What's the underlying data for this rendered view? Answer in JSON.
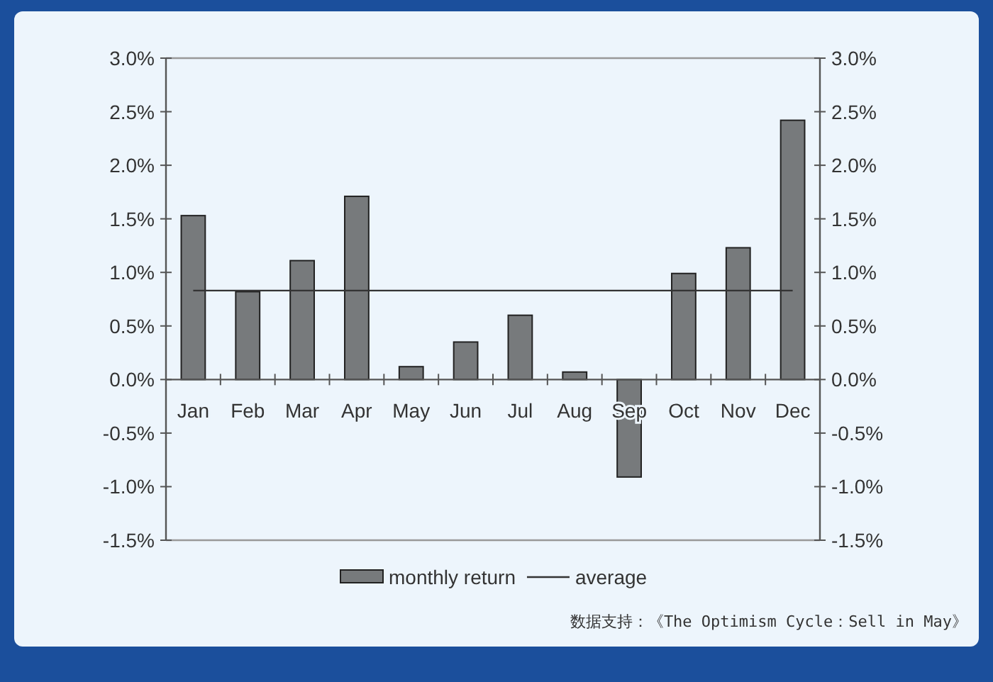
{
  "chart_data": {
    "type": "bar",
    "categories": [
      "Jan",
      "Feb",
      "Mar",
      "Apr",
      "May",
      "Jun",
      "Jul",
      "Aug",
      "Sep",
      "Oct",
      "Nov",
      "Dec"
    ],
    "series": [
      {
        "name": "monthly return",
        "color": "#777a7c",
        "values": [
          1.53,
          0.82,
          1.11,
          1.71,
          0.12,
          0.35,
          0.6,
          0.07,
          -0.91,
          0.99,
          1.23,
          2.42
        ]
      },
      {
        "name": "average",
        "type": "line",
        "color": "#333333",
        "values": [
          0.83,
          0.83,
          0.83,
          0.83,
          0.83,
          0.83,
          0.83,
          0.83,
          0.83,
          0.83,
          0.83,
          0.83
        ]
      }
    ],
    "ylim": [
      -1.5,
      3
    ],
    "yticks": [
      {
        "value": -1.5,
        "label": "-1.5%"
      },
      {
        "value": -1,
        "label": "-1.0%"
      },
      {
        "value": -0.5,
        "label": "-0.5%"
      },
      {
        "value": 0,
        "label": "0.0%"
      },
      {
        "value": 0.5,
        "label": "0.5%"
      },
      {
        "value": 1,
        "label": "1.0%"
      },
      {
        "value": 1.5,
        "label": "1.5%"
      },
      {
        "value": 2,
        "label": "2.0%"
      },
      {
        "value": 2.5,
        "label": "2.5%"
      },
      {
        "value": 3,
        "label": "3.0%"
      }
    ],
    "y2lim": [
      -1.5,
      3
    ],
    "y2ticks": [
      {
        "value": -1.5,
        "label": "-1.5%"
      },
      {
        "value": -1,
        "label": "-1.0%"
      },
      {
        "value": -0.5,
        "label": "-0.5%"
      },
      {
        "value": 0,
        "label": "0.0%"
      },
      {
        "value": 0.5,
        "label": "0.5%"
      },
      {
        "value": 1,
        "label": "1.0%"
      },
      {
        "value": 1.5,
        "label": "1.5%"
      },
      {
        "value": 2,
        "label": "2.0%"
      },
      {
        "value": 2.5,
        "label": "2.5%"
      },
      {
        "value": 3,
        "label": "3.0%"
      }
    ],
    "legend": "bottom",
    "grid": false,
    "annotations": [
      "数据支持：《The Optimism Cycle：Sell in May》"
    ]
  }
}
